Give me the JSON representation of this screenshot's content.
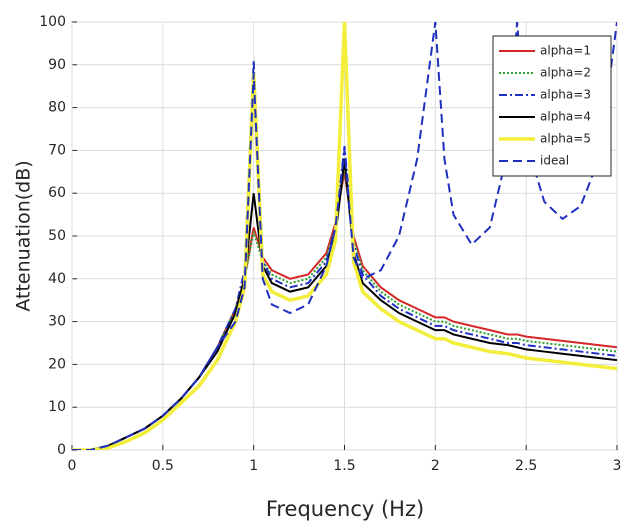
{
  "chart_data": {
    "type": "line",
    "xlabel": "Frequency (Hz)",
    "ylabel": "Attenuation(dB)",
    "x": [
      0,
      0.1,
      0.2,
      0.3,
      0.4,
      0.5,
      0.6,
      0.7,
      0.8,
      0.9,
      0.95,
      1.0,
      1.05,
      1.1,
      1.2,
      1.3,
      1.4,
      1.45,
      1.5,
      1.55,
      1.6,
      1.7,
      1.8,
      1.9,
      2.0,
      2.05,
      2.1,
      2.2,
      2.3,
      2.4,
      2.45,
      2.5,
      2.6,
      2.7,
      2.8,
      2.9,
      3.0
    ],
    "series": [
      {
        "name": "alpha=1",
        "color": "#d62728",
        "style": "solid",
        "values": [
          0,
          0,
          1,
          3,
          5,
          8,
          12,
          17,
          24,
          33,
          40,
          52,
          45,
          42,
          40,
          41,
          46,
          53,
          65,
          50,
          43,
          38,
          35,
          33,
          31,
          31,
          30,
          29,
          28,
          27,
          27,
          26.5,
          26,
          25.5,
          25,
          24.5,
          24
        ]
      },
      {
        "name": "alpha=2",
        "color": "#2ca02c",
        "style": "dotted",
        "values": [
          0,
          0,
          1,
          3,
          5,
          8,
          12,
          17,
          24,
          33,
          40,
          51,
          44,
          41,
          39,
          40,
          45,
          52,
          66,
          49,
          42,
          37,
          34,
          32,
          30,
          30,
          29,
          28,
          27,
          26,
          26,
          25.5,
          25,
          24.5,
          24,
          23.5,
          23
        ]
      },
      {
        "name": "alpha=3",
        "color": "#1f2fbf",
        "style": "dashdot",
        "values": [
          0,
          0,
          1,
          3,
          5,
          8,
          12,
          17,
          24,
          33,
          42,
          91,
          44,
          40,
          38,
          39,
          44,
          52,
          71,
          48,
          41,
          36,
          33,
          31,
          29,
          29,
          28,
          27,
          26,
          25,
          25,
          24.5,
          24,
          23.5,
          23,
          22.5,
          22
        ]
      },
      {
        "name": "alpha=4",
        "color": "#000000",
        "style": "solid",
        "values": [
          0,
          0,
          1,
          3,
          5,
          8,
          12,
          17,
          23,
          32,
          40,
          60,
          43,
          39,
          37,
          38,
          43,
          50,
          68,
          46,
          39,
          35,
          32,
          30,
          28,
          28,
          27,
          26,
          25,
          24.5,
          24,
          23.5,
          23,
          22.5,
          22,
          21.5,
          21
        ]
      },
      {
        "name": "alpha=5",
        "color": "#f2ee3a",
        "style": "solid",
        "values": [
          0,
          0,
          0.5,
          2,
          4,
          7,
          11,
          15,
          21,
          30,
          38,
          88,
          41,
          37,
          35,
          36,
          41,
          49,
          100,
          44,
          37,
          33,
          30,
          28,
          26,
          26,
          25,
          24,
          23,
          22.5,
          22,
          21.5,
          21,
          20.5,
          20,
          19.5,
          19
        ]
      },
      {
        "name": "ideal",
        "color": "#1f2fbf",
        "style": "dashed",
        "values": [
          0,
          0,
          1,
          3,
          5,
          8,
          12,
          17,
          24,
          30,
          38,
          88,
          40,
          34,
          32,
          34,
          43,
          52,
          70,
          45,
          40,
          42,
          50,
          68,
          100,
          68,
          55,
          48,
          52,
          70,
          100,
          72,
          58,
          54,
          57,
          68,
          100
        ]
      }
    ],
    "xlim": [
      0,
      3
    ],
    "xticks": [
      0,
      0.5,
      1,
      1.5,
      2,
      2.5,
      3
    ],
    "ylim": [
      0,
      100
    ],
    "yticks": [
      0,
      10,
      20,
      30,
      40,
      50,
      60,
      70,
      80,
      90,
      100
    ],
    "grid": true,
    "legend": "upper right"
  }
}
